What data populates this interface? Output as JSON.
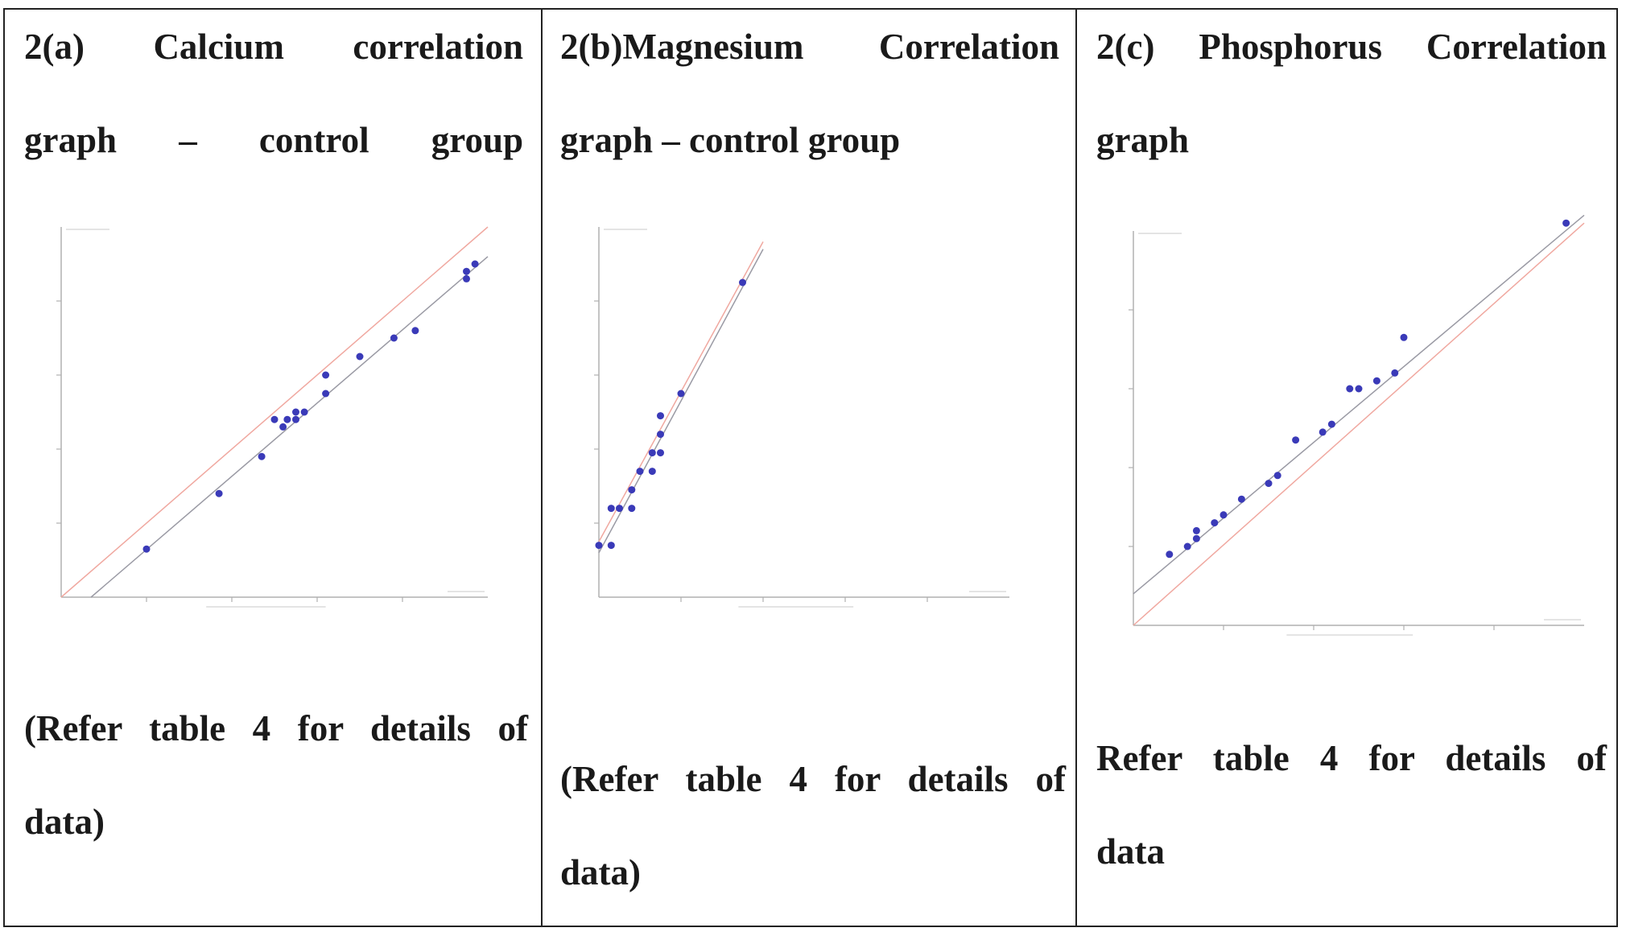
{
  "panels": [
    {
      "title_lines": [
        "2(a) Calcium correlation",
        "graph – control group"
      ],
      "note_lines": [
        "(Refer table 4 for details of",
        "data)"
      ]
    },
    {
      "title_lines": [
        "2(b)Magnesium Correlation",
        "graph – control group"
      ],
      "note_lines": [
        "(Refer table 4 for details of",
        "data)"
      ]
    },
    {
      "title_lines": [
        "2(c) Phosphorus Correlation",
        "graph"
      ],
      "note_lines": [
        "Refer table 4 for details of",
        "data"
      ]
    }
  ],
  "colors": {
    "points": "#3a3ab8",
    "identity_line": "#f0a8a0",
    "fit_line": "#9a9aa4",
    "axes": "#b0b0b0",
    "border": "#222222"
  },
  "chart_data": [
    {
      "type": "scatter",
      "title": "2(a) Calcium correlation graph – control group",
      "xlabel": "",
      "ylabel": "",
      "xlim": [
        0,
        10
      ],
      "ylim": [
        0,
        10
      ],
      "grid": false,
      "x": [
        2.0,
        3.7,
        4.7,
        5.0,
        5.2,
        5.3,
        5.5,
        5.5,
        5.7,
        6.2,
        6.2,
        7.0,
        7.8,
        8.3,
        9.5,
        9.5,
        9.7
      ],
      "y": [
        1.3,
        2.8,
        3.8,
        4.8,
        4.6,
        4.8,
        4.8,
        5.0,
        5.0,
        5.5,
        6.0,
        6.5,
        7.0,
        7.2,
        8.6,
        8.8,
        9.0
      ],
      "identity_line": [
        [
          0,
          0
        ],
        [
          10,
          10
        ]
      ],
      "fit_line": [
        [
          0.7,
          0
        ],
        [
          10,
          9.2
        ]
      ]
    },
    {
      "type": "scatter",
      "title": "2(b)Magnesium Correlation graph – control group",
      "xlabel": "",
      "ylabel": "",
      "xlim": [
        0,
        10
      ],
      "ylim": [
        0,
        10
      ],
      "grid": false,
      "x": [
        0.0,
        0.3,
        0.3,
        0.5,
        0.8,
        0.8,
        1.0,
        1.3,
        1.3,
        1.5,
        1.5,
        1.5,
        2.0,
        3.5
      ],
      "y": [
        1.4,
        1.4,
        2.4,
        2.4,
        2.4,
        2.9,
        3.4,
        3.4,
        3.9,
        3.9,
        4.4,
        4.9,
        5.5,
        8.5
      ],
      "identity_line": [
        [
          0,
          1.5
        ],
        [
          4,
          9.6
        ]
      ],
      "fit_line": [
        [
          0,
          1.2
        ],
        [
          4,
          9.4
        ]
      ]
    },
    {
      "type": "scatter",
      "title": "2(c) Phosphorus Correlation graph",
      "xlabel": "",
      "ylabel": "",
      "xlim": [
        0,
        10
      ],
      "ylim": [
        0,
        10
      ],
      "grid": false,
      "x": [
        0.8,
        1.2,
        1.4,
        1.4,
        1.8,
        2.0,
        2.4,
        3.0,
        3.2,
        3.6,
        4.2,
        4.4,
        4.8,
        5.0,
        5.4,
        5.8,
        6.0,
        9.6
      ],
      "y": [
        1.8,
        2.0,
        2.2,
        2.4,
        2.6,
        2.8,
        3.2,
        3.6,
        3.8,
        4.7,
        4.9,
        5.1,
        6.0,
        6.0,
        6.2,
        6.4,
        7.3,
        10.2
      ],
      "identity_line": [
        [
          0,
          0
        ],
        [
          10,
          10.2
        ]
      ],
      "fit_line": [
        [
          0,
          0.8
        ],
        [
          10,
          10.4
        ]
      ]
    }
  ]
}
